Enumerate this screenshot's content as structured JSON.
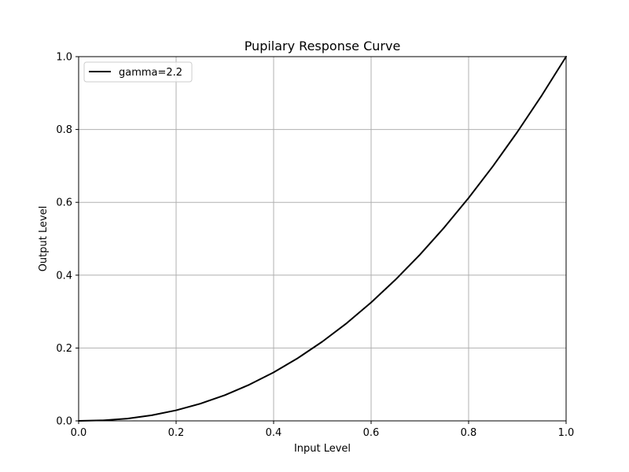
{
  "chart_data": {
    "type": "line",
    "title": "Pupilary Response Curve",
    "xlabel": "Input Level",
    "ylabel": "Output Level",
    "xlim": [
      0.0,
      1.0
    ],
    "ylim": [
      0.0,
      1.0
    ],
    "x_ticks": [
      "0.0",
      "0.2",
      "0.4",
      "0.6",
      "0.8",
      "1.0"
    ],
    "y_ticks": [
      "0.0",
      "0.2",
      "0.4",
      "0.6",
      "0.8",
      "1.0"
    ],
    "grid": true,
    "legend_position": "top-left",
    "series": [
      {
        "name": "gamma=2.2",
        "color": "#000000",
        "x": [
          0.0,
          0.05,
          0.1,
          0.15,
          0.2,
          0.25,
          0.3,
          0.35,
          0.4,
          0.45,
          0.5,
          0.55,
          0.6,
          0.65,
          0.7,
          0.75,
          0.8,
          0.85,
          0.9,
          0.95,
          1.0
        ],
        "y": [
          0.0,
          0.0014,
          0.0063,
          0.0154,
          0.029,
          0.0474,
          0.0707,
          0.0993,
          0.1332,
          0.1726,
          0.2176,
          0.2683,
          0.325,
          0.3876,
          0.4562,
          0.531,
          0.6121,
          0.6994,
          0.7932,
          0.8933,
          1.0
        ]
      }
    ]
  }
}
